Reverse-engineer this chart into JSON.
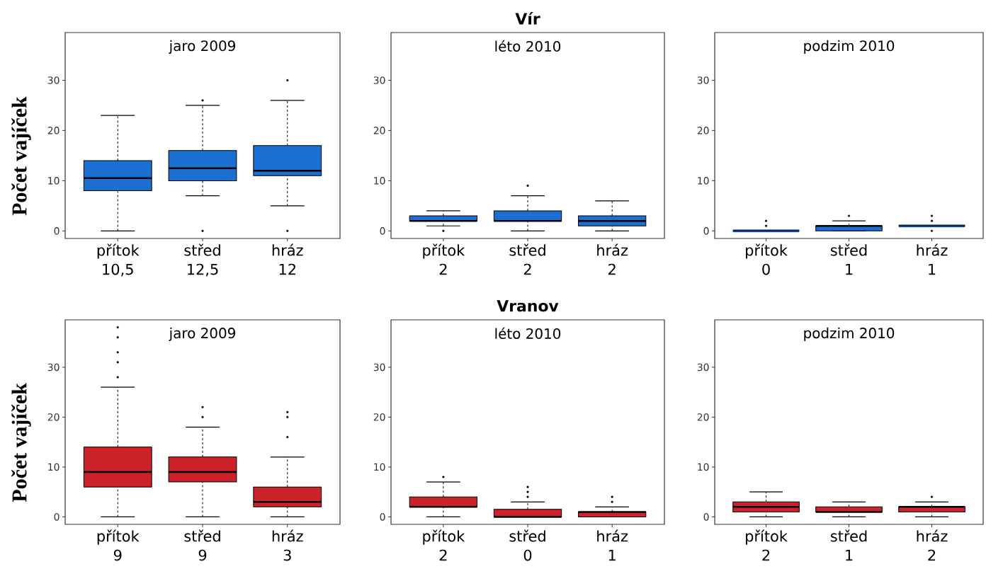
{
  "chart_data": [
    {
      "type": "box",
      "title": "jaro 2009",
      "ylabel": "Počet vajíček",
      "categories": [
        "přítok",
        "střed",
        "hráz"
      ],
      "ylim": [
        -1.5,
        39.5
      ],
      "yticks": [
        0,
        10,
        20,
        30
      ],
      "marker": "circle",
      "series": [
        {
          "color": "#1c6fd1",
          "value_labels": [
            "10,5",
            "12,5",
            "12"
          ],
          "boxes": [
            {
              "low": 0,
              "q1": 8,
              "median": 10.5,
              "q3": 14,
              "high": 23
            },
            {
              "low": 7,
              "q1": 10,
              "median": 12.5,
              "q3": 16,
              "high": 25,
              "outliers": [
                26,
                0
              ]
            },
            {
              "low": 5,
              "q1": 11,
              "median": 12,
              "q3": 17,
              "high": 26,
              "outliers": [
                30,
                0
              ]
            }
          ]
        }
      ]
    },
    {
      "type": "box",
      "title": "Vír",
      "subtitle": "léto 2010",
      "categories": [
        "přítok",
        "střed",
        "hráz"
      ],
      "ylim": [
        -1.5,
        39.5
      ],
      "yticks": [
        0,
        10,
        20,
        30
      ],
      "marker": "circle",
      "series": [
        {
          "color": "#1c6fd1",
          "value_labels": [
            "2",
            "2",
            "2"
          ],
          "boxes": [
            {
              "low": 1,
              "q1": 2,
              "median": 2,
              "q3": 3,
              "high": 4,
              "outliers": [
                0
              ]
            },
            {
              "low": 0,
              "q1": 2,
              "median": 2,
              "q3": 4,
              "high": 7,
              "outliers": [
                9
              ]
            },
            {
              "low": 0,
              "q1": 1,
              "median": 2,
              "q3": 3,
              "high": 6
            }
          ]
        }
      ]
    },
    {
      "type": "box",
      "title": "podzim 2010",
      "categories": [
        "přítok",
        "střed",
        "hráz"
      ],
      "ylim": [
        -1.5,
        39.5
      ],
      "yticks": [
        0,
        10,
        20,
        30
      ],
      "marker": "circle",
      "series": [
        {
          "color": "#1c6fd1",
          "value_labels": [
            "0",
            "1",
            "1"
          ],
          "boxes": [
            {
              "low": 0,
              "q1": 0,
              "median": 0,
              "q3": 0,
              "high": 0,
              "outliers": [
                1,
                2
              ]
            },
            {
              "low": 0,
              "q1": 0,
              "median": 1,
              "q3": 1,
              "high": 2,
              "outliers": [
                3
              ]
            },
            {
              "low": 1,
              "q1": 1,
              "median": 1,
              "q3": 1,
              "high": 1,
              "outliers": [
                0,
                2,
                3
              ]
            }
          ]
        }
      ]
    },
    {
      "type": "box",
      "title": "jaro 2009",
      "ylabel": "Počet vajíček",
      "categories": [
        "přítok",
        "střed",
        "hráz"
      ],
      "ylim": [
        -1.5,
        39.5
      ],
      "yticks": [
        0,
        10,
        20,
        30
      ],
      "marker": "circle",
      "series": [
        {
          "color": "#cc2229",
          "value_labels": [
            "9",
            "9",
            "3"
          ],
          "boxes": [
            {
              "low": 0,
              "q1": 6,
              "median": 9,
              "q3": 14,
              "high": 26,
              "outliers": [
                28,
                31,
                33,
                36,
                38
              ]
            },
            {
              "low": 0,
              "q1": 7,
              "median": 9,
              "q3": 12,
              "high": 18,
              "outliers": [
                20,
                22
              ]
            },
            {
              "low": 0,
              "q1": 2,
              "median": 3,
              "q3": 6,
              "high": 12,
              "outliers": [
                16,
                20,
                21
              ]
            }
          ]
        }
      ]
    },
    {
      "type": "box",
      "title": "Vranov",
      "subtitle": "léto 2010",
      "categories": [
        "přítok",
        "střed",
        "hráz"
      ],
      "ylim": [
        -1.5,
        39.5
      ],
      "yticks": [
        0,
        10,
        20,
        30
      ],
      "marker": "circle",
      "series": [
        {
          "color": "#cc2229",
          "value_labels": [
            "2",
            "0",
            "1"
          ],
          "boxes": [
            {
              "low": 0,
              "q1": 2,
              "median": 2,
              "q3": 4,
              "high": 7,
              "outliers": [
                8
              ]
            },
            {
              "low": 0,
              "q1": 0,
              "median": 0,
              "q3": 1.5,
              "high": 3,
              "outliers": [
                4,
                5,
                6
              ]
            },
            {
              "low": 0,
              "q1": 0,
              "median": 1,
              "q3": 1,
              "high": 2,
              "outliers": [
                3,
                4
              ]
            }
          ]
        }
      ]
    },
    {
      "type": "box",
      "title": "podzim 2010",
      "categories": [
        "přítok",
        "střed",
        "hráz"
      ],
      "ylim": [
        -1.5,
        39.5
      ],
      "yticks": [
        0,
        10,
        20,
        30
      ],
      "marker": "circle",
      "series": [
        {
          "color": "#cc2229",
          "value_labels": [
            "2",
            "1",
            "2"
          ],
          "boxes": [
            {
              "low": 0,
              "q1": 1,
              "median": 2,
              "q3": 3,
              "high": 5
            },
            {
              "low": 0,
              "q1": 1,
              "median": 1,
              "q3": 2,
              "high": 3
            },
            {
              "low": 0,
              "q1": 1,
              "median": 2,
              "q3": 2,
              "high": 3,
              "outliers": [
                4
              ]
            }
          ]
        }
      ]
    }
  ]
}
